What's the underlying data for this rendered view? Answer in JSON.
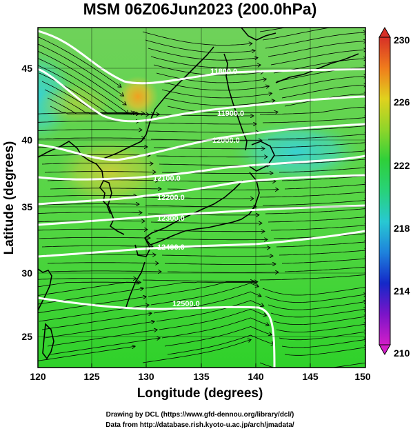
{
  "title": "MSM 06Z06Jun2023 (200.0hPa)",
  "xlabel": "Longitude (degrees)",
  "ylabel": "Latitude  (degrees)",
  "x_ticks": [
    "120",
    "125",
    "130",
    "135",
    "140",
    "145",
    "150"
  ],
  "y_ticks": [
    "25",
    "30",
    "35",
    "40",
    "45"
  ],
  "colorbar_ticks": [
    "210",
    "214",
    "218",
    "222",
    "226",
    "230"
  ],
  "contour_labels": [
    "11800.0",
    "11900.0",
    "12000.0",
    "12100.0",
    "12200.0",
    "12300.0",
    "12400.0",
    "12500.0"
  ],
  "credits": {
    "line1": "Drawing by DCL (https://www.gfd-dennou.org/library/dcl/)",
    "line2": "Data from http://database.rish.kyoto-u.ac.jp/arch/jmadata/"
  },
  "chart_data": {
    "type": "map",
    "quantity": "temperature (colors), geopotential height (contours), wind (streamlines)",
    "level": "200.0hPa",
    "xlim": [
      120,
      150
    ],
    "ylim": [
      22.5,
      47.5
    ],
    "colorbar_range": [
      210,
      230
    ],
    "colors": {
      "colorbar_top": "#d73027",
      "colorbar_mid": "#3bd23b",
      "colorbar_bottom": "#d21ec8",
      "contour": "#ffffff",
      "coast": "#000000"
    }
  }
}
